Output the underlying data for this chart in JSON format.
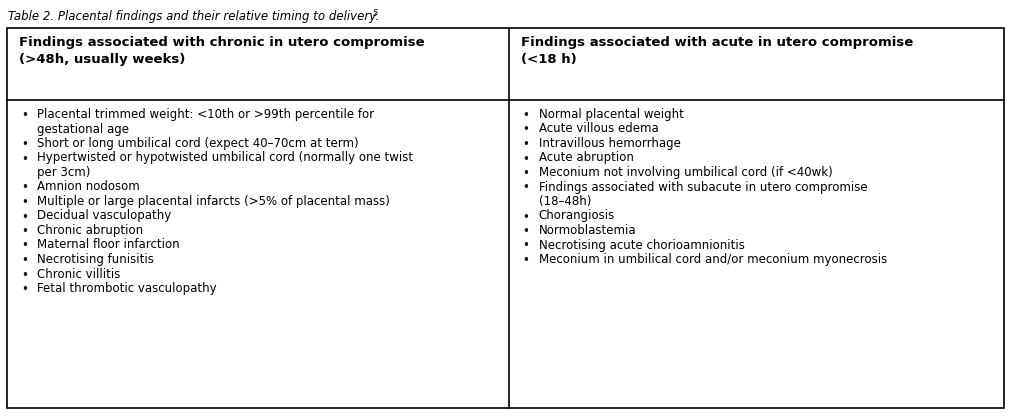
{
  "title_text": "Table 2. Placental findings and their relative timing to delivery.",
  "title_superscript": "5",
  "col1_header_line1": "Findings associated with chronic in utero compromise",
  "col1_header_line2": "(>48h, usually weeks)",
  "col2_header_line1": "Findings associated with acute in utero compromise",
  "col2_header_line2": "(<18 h)",
  "col1_items": [
    [
      "Placental trimmed weight: <10th or >99th percentile for",
      "gestational age"
    ],
    [
      "Short or long umbilical cord (expect 40–70cm at term)"
    ],
    [
      "Hypertwisted or hypotwisted umbilical cord (normally one twist",
      "per 3cm)"
    ],
    [
      "Amnion nodosom"
    ],
    [
      "Multiple or large placental infarcts (>5% of placental mass)"
    ],
    [
      "Decidual vasculopathy"
    ],
    [
      "Chronic abruption"
    ],
    [
      "Maternal floor infarction"
    ],
    [
      "Necrotising funisitis"
    ],
    [
      "Chronic villitis"
    ],
    [
      "Fetal thrombotic vasculopathy"
    ]
  ],
  "col2_items": [
    [
      "Normal placental weight"
    ],
    [
      "Acute villous edema"
    ],
    [
      "Intravillous hemorrhage"
    ],
    [
      "Acute abruption"
    ],
    [
      "Meconium not involving umbilical cord (if <40wk)"
    ],
    [
      "Findings associated with subacute in utero compromise",
      "(18–48h)"
    ],
    [
      "Chorangiosis"
    ],
    [
      "Normoblastemia"
    ],
    [
      "Necrotising acute chorioamnionitis"
    ],
    [
      "Meconium in umbilical cord and/or meconium myonecrosis"
    ]
  ],
  "bg_color": "#ffffff",
  "border_color": "#000000",
  "text_color": "#000000",
  "fig_width": 10.11,
  "fig_height": 4.16,
  "dpi": 100
}
